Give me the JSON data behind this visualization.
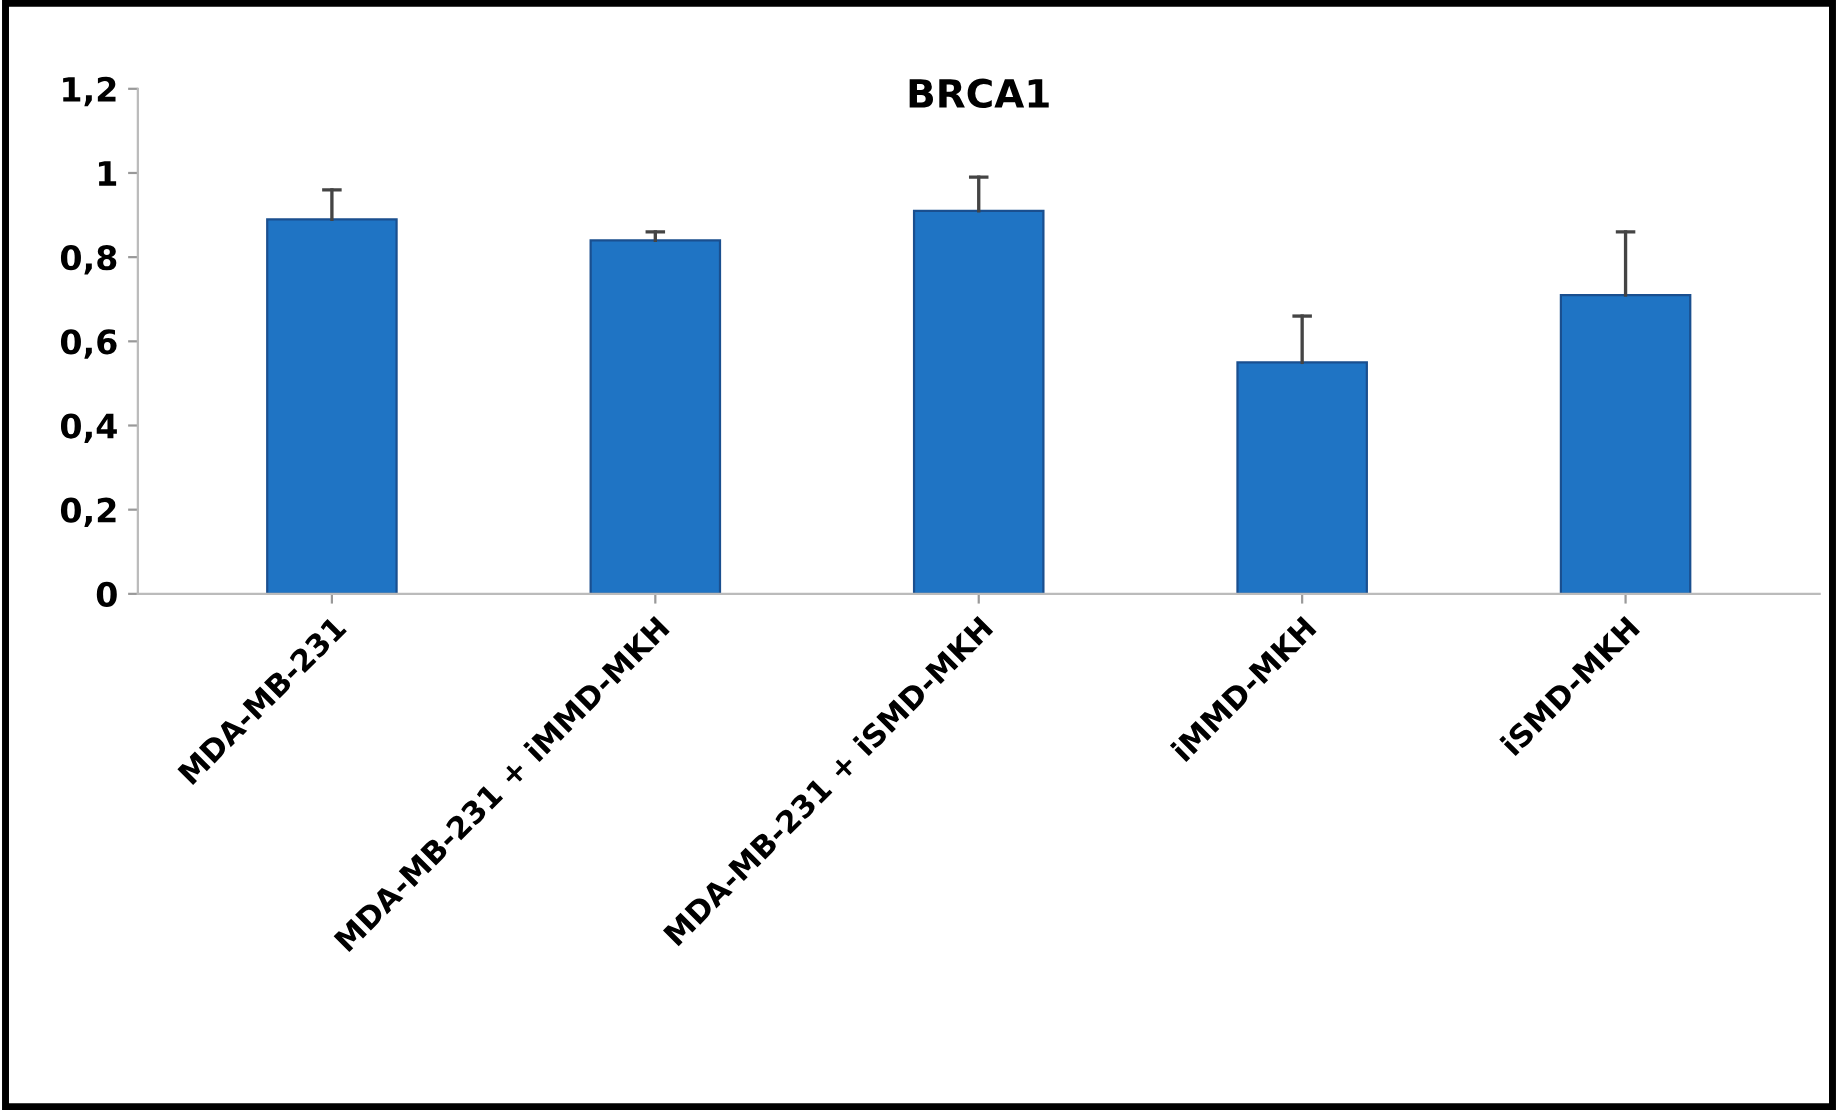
{
  "chart_data": {
    "type": "bar",
    "title": "BRCA1",
    "categories": [
      "MDA-MB-231",
      "MDA-MB-231 + iMMD-MKH",
      "MDA-MB-231 + iSMD-MKH",
      "iMMD-MKH",
      "iSMD-MKH"
    ],
    "values": [
      0.89,
      0.84,
      0.91,
      0.55,
      0.71
    ],
    "errors": [
      [
        0.89,
        0.96
      ],
      [
        0.84,
        0.86
      ],
      [
        0.91,
        0.99
      ],
      [
        0.55,
        0.66
      ],
      [
        0.71,
        0.86
      ]
    ],
    "color": "#1f74c4",
    "ylim": [
      0,
      1.2
    ],
    "yticks": [
      0,
      {
        "value": 0.2,
        "label": "0,2"
      },
      {
        "value": 0.4,
        "label": "0,4"
      },
      {
        "value": 0.6,
        "label": "0,6"
      },
      {
        "value": 0.8,
        "label": "0,8"
      },
      1,
      {
        "value": 1.2,
        "label": "1,2"
      }
    ],
    "grid": false,
    "legend": false
  }
}
